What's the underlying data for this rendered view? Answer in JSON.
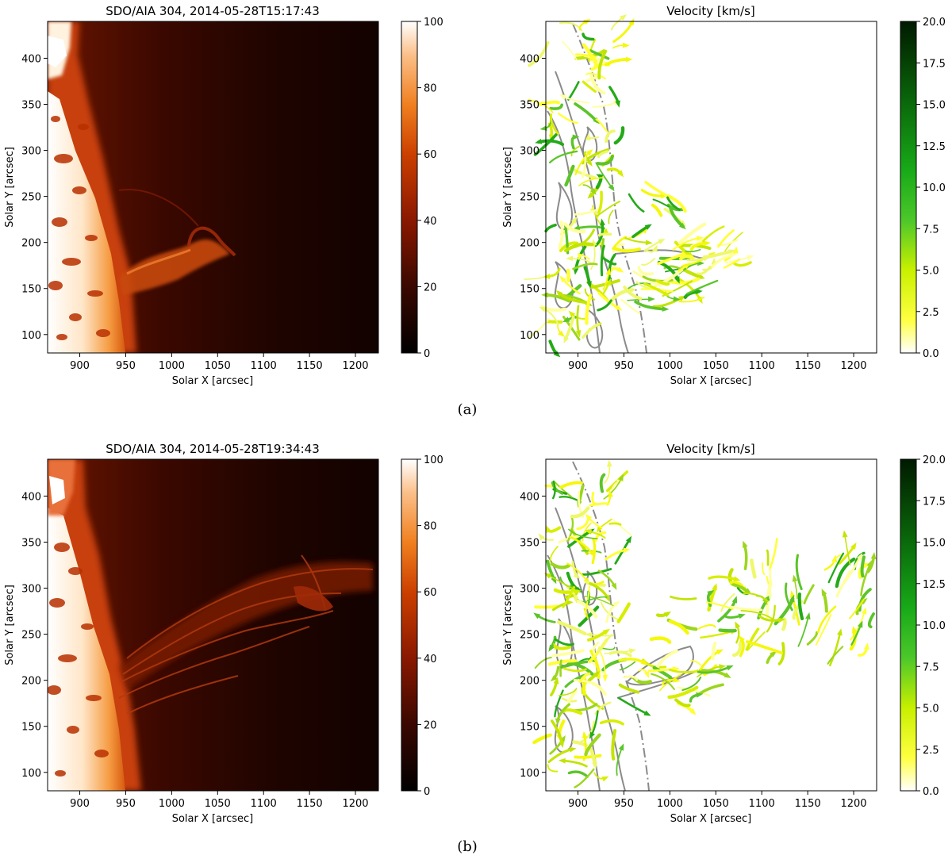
{
  "figure": {
    "panels": [
      {
        "caption": "(a)",
        "image": {
          "title": "SDO/AIA 304, 2014-05-28T15:17:43",
          "xlabel": "Solar X [arcsec]",
          "ylabel": "Solar Y [arcsec]",
          "xticks": [
            "900",
            "950",
            "1000",
            "1050",
            "1100",
            "1150",
            "1200"
          ],
          "yticks": [
            "100",
            "150",
            "200",
            "250",
            "300",
            "350",
            "400"
          ],
          "cbar_ticks": [
            "0",
            "20",
            "40",
            "60",
            "80",
            "100"
          ]
        },
        "velocity": {
          "title": "Velocity [km/s]",
          "xlabel": "Solar X [arcsec]",
          "ylabel": "Solar Y [arcsec]",
          "xticks": [
            "900",
            "950",
            "1000",
            "1050",
            "1100",
            "1150",
            "1200"
          ],
          "yticks": [
            "100",
            "150",
            "200",
            "250",
            "300",
            "350",
            "400"
          ],
          "cbar_ticks": [
            "0.0",
            "2.5",
            "5.0",
            "7.5",
            "10.0",
            "12.5",
            "15.0",
            "17.5",
            "20.0"
          ]
        }
      },
      {
        "caption": "(b)",
        "image": {
          "title": "SDO/AIA 304, 2014-05-28T19:34:43",
          "xlabel": "Solar X [arcsec]",
          "ylabel": "Solar Y [arcsec]",
          "xticks": [
            "900",
            "950",
            "1000",
            "1050",
            "1100",
            "1150",
            "1200"
          ],
          "yticks": [
            "100",
            "150",
            "200",
            "250",
            "300",
            "350",
            "400"
          ],
          "cbar_ticks": [
            "0",
            "20",
            "40",
            "60",
            "80",
            "100"
          ]
        },
        "velocity": {
          "title": "Velocity [km/s]",
          "xlabel": "Solar X [arcsec]",
          "ylabel": "Solar Y [arcsec]",
          "xticks": [
            "900",
            "950",
            "1000",
            "1050",
            "1100",
            "1150",
            "1200"
          ],
          "yticks": [
            "100",
            "150",
            "200",
            "250",
            "300",
            "350",
            "400"
          ],
          "cbar_ticks": [
            "0.0",
            "2.5",
            "5.0",
            "7.5",
            "10.0",
            "12.5",
            "15.0",
            "17.5",
            "20.0"
          ]
        }
      }
    ]
  },
  "chart_data": [
    {
      "type": "heatmap",
      "title": "SDO/AIA 304, 2014-05-28T15:17:43",
      "xlabel": "Solar X [arcsec]",
      "ylabel": "Solar Y [arcsec]",
      "xlim": [
        865,
        1225
      ],
      "ylim": [
        80,
        440
      ],
      "colorbar": {
        "range": [
          0,
          100
        ],
        "colormap": "black-red-orange-white"
      }
    },
    {
      "type": "scatter",
      "title": "Velocity [km/s]",
      "xlabel": "Solar X [arcsec]",
      "ylabel": "Solar Y [arcsec]",
      "xlim": [
        865,
        1225
      ],
      "ylim": [
        80,
        440
      ],
      "colorbar": {
        "range": [
          0,
          20
        ],
        "colormap": "white-yellow-green-black"
      }
    },
    {
      "type": "heatmap",
      "title": "SDO/AIA 304, 2014-05-28T19:34:43",
      "xlabel": "Solar X [arcsec]",
      "ylabel": "Solar Y [arcsec]",
      "xlim": [
        865,
        1225
      ],
      "ylim": [
        80,
        440
      ],
      "colorbar": {
        "range": [
          0,
          100
        ],
        "colormap": "black-red-orange-white"
      }
    },
    {
      "type": "scatter",
      "title": "Velocity [km/s]",
      "xlabel": "Solar X [arcsec]",
      "ylabel": "Solar Y [arcsec]",
      "xlim": [
        865,
        1225
      ],
      "ylim": [
        80,
        440
      ],
      "colorbar": {
        "range": [
          0,
          20
        ],
        "colormap": "white-yellow-green-black"
      }
    }
  ],
  "colors": {
    "hot": [
      "#000000",
      "#4a0a00",
      "#8e1a00",
      "#c83a00",
      "#f07a10",
      "#fbb070",
      "#ffffff"
    ],
    "velocity": [
      "#ffffe0",
      "#ffff00",
      "#b4e600",
      "#4cc02a",
      "#14a014",
      "#0a5a0a",
      "#002a00"
    ],
    "contour": "#8a8a8a"
  }
}
